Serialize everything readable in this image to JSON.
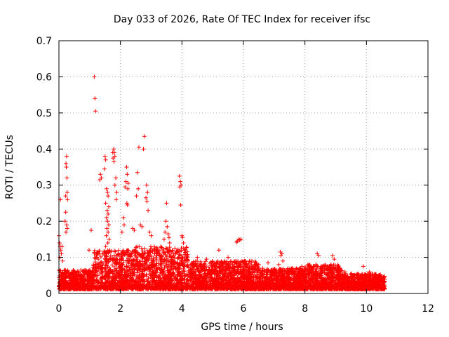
{
  "chart_data": {
    "type": "scatter",
    "title": "Day 033 of 2026, Rate Of TEC Index for receiver ifsc",
    "xlabel": "GPS time / hours",
    "ylabel": "ROTI / TECUs",
    "xlim": [
      0,
      12
    ],
    "ylim": [
      0,
      0.7
    ],
    "xticks": [
      0,
      2,
      4,
      6,
      8,
      10,
      12
    ],
    "yticks": [
      0,
      0.1,
      0.2,
      0.3,
      0.4,
      0.5,
      0.6,
      0.7
    ],
    "xtick_labels": [
      "0",
      "2",
      "4",
      "6",
      "8",
      "10",
      "12"
    ],
    "ytick_labels": [
      "0",
      "0.1",
      "0.2",
      "0.3",
      "0.4",
      "0.5",
      "0.6",
      "0.7"
    ],
    "grid": true,
    "marker": "+",
    "color": "#ff0000",
    "series": [
      {
        "name": "ROTI",
        "points": [
          [
            1.15,
            0.6
          ],
          [
            1.17,
            0.54
          ],
          [
            1.19,
            0.505
          ],
          [
            2.78,
            0.435
          ],
          [
            2.75,
            0.4
          ],
          [
            2.6,
            0.405
          ],
          [
            1.78,
            0.4
          ],
          [
            1.8,
            0.39
          ],
          [
            1.82,
            0.38
          ],
          [
            1.76,
            0.375
          ],
          [
            1.79,
            0.365
          ],
          [
            1.75,
            0.39
          ],
          [
            0.25,
            0.38
          ],
          [
            0.23,
            0.36
          ],
          [
            0.24,
            0.35
          ],
          [
            0.26,
            0.32
          ],
          [
            0.27,
            0.28
          ],
          [
            0.22,
            0.27
          ],
          [
            0.28,
            0.26
          ],
          [
            0.05,
            0.26
          ],
          [
            0.22,
            0.225
          ],
          [
            0.2,
            0.2
          ],
          [
            0.25,
            0.19
          ],
          [
            0.27,
            0.18
          ],
          [
            0.23,
            0.17
          ],
          [
            1.5,
            0.38
          ],
          [
            1.52,
            0.37
          ],
          [
            1.48,
            0.345
          ],
          [
            1.35,
            0.33
          ],
          [
            1.33,
            0.315
          ],
          [
            1.38,
            0.32
          ],
          [
            1.55,
            0.29
          ],
          [
            1.58,
            0.28
          ],
          [
            1.6,
            0.27
          ],
          [
            1.52,
            0.25
          ],
          [
            1.62,
            0.24
          ],
          [
            1.57,
            0.23
          ],
          [
            1.6,
            0.22
          ],
          [
            1.55,
            0.21
          ],
          [
            1.58,
            0.2
          ],
          [
            1.62,
            0.19
          ],
          [
            1.56,
            0.18
          ],
          [
            1.6,
            0.17
          ],
          [
            1.54,
            0.16
          ],
          [
            1.63,
            0.15
          ],
          [
            1.59,
            0.14
          ],
          [
            1.52,
            0.13
          ],
          [
            1.65,
            0.12
          ],
          [
            1.85,
            0.32
          ],
          [
            1.82,
            0.3
          ],
          [
            1.88,
            0.28
          ],
          [
            1.86,
            0.26
          ],
          [
            2.2,
            0.35
          ],
          [
            2.22,
            0.33
          ],
          [
            2.18,
            0.31
          ],
          [
            2.25,
            0.305
          ],
          [
            2.15,
            0.295
          ],
          [
            2.24,
            0.29
          ],
          [
            2.21,
            0.25
          ],
          [
            2.23,
            0.245
          ],
          [
            2.1,
            0.21
          ],
          [
            2.12,
            0.19
          ],
          [
            2.05,
            0.17
          ],
          [
            2.55,
            0.335
          ],
          [
            2.58,
            0.29
          ],
          [
            2.52,
            0.27
          ],
          [
            2.85,
            0.3
          ],
          [
            2.88,
            0.28
          ],
          [
            2.83,
            0.265
          ],
          [
            2.86,
            0.255
          ],
          [
            2.9,
            0.23
          ],
          [
            2.4,
            0.18
          ],
          [
            2.45,
            0.175
          ],
          [
            2.65,
            0.19
          ],
          [
            2.7,
            0.185
          ],
          [
            2.95,
            0.17
          ],
          [
            3.0,
            0.16
          ],
          [
            3.5,
            0.25
          ],
          [
            3.48,
            0.2
          ],
          [
            3.52,
            0.185
          ],
          [
            3.45,
            0.17
          ],
          [
            3.55,
            0.165
          ],
          [
            3.58,
            0.155
          ],
          [
            3.42,
            0.15
          ],
          [
            3.6,
            0.14
          ],
          [
            3.92,
            0.325
          ],
          [
            3.95,
            0.31
          ],
          [
            3.97,
            0.3
          ],
          [
            3.93,
            0.295
          ],
          [
            3.96,
            0.245
          ],
          [
            4.0,
            0.16
          ],
          [
            4.02,
            0.155
          ],
          [
            4.05,
            0.14
          ],
          [
            4.08,
            0.12
          ],
          [
            1.05,
            0.175
          ],
          [
            0.98,
            0.12
          ],
          [
            5.85,
            0.15
          ],
          [
            5.88,
            0.148
          ],
          [
            5.8,
            0.145
          ],
          [
            5.78,
            0.142
          ],
          [
            5.92,
            0.15
          ],
          [
            7.2,
            0.115
          ],
          [
            7.25,
            0.11
          ],
          [
            7.22,
            0.105
          ],
          [
            7.28,
            0.09
          ],
          [
            7.15,
            0.08
          ],
          [
            8.4,
            0.11
          ],
          [
            8.45,
            0.105
          ],
          [
            8.9,
            0.105
          ],
          [
            8.95,
            0.095
          ],
          [
            8.85,
            0.08
          ],
          [
            0.0,
            0.16
          ],
          [
            0.02,
            0.14
          ],
          [
            0.04,
            0.13
          ],
          [
            0.06,
            0.12
          ],
          [
            0.03,
            0.1
          ],
          [
            0.08,
            0.11
          ],
          [
            0.1,
            0.13
          ],
          [
            0.12,
            0.09
          ],
          [
            4.5,
            0.1
          ],
          [
            4.8,
            0.095
          ],
          [
            5.2,
            0.12
          ],
          [
            5.5,
            0.1
          ],
          [
            6.2,
            0.09
          ],
          [
            6.5,
            0.08
          ],
          [
            6.8,
            0.085
          ],
          [
            7.6,
            0.07
          ],
          [
            7.9,
            0.075
          ],
          [
            8.2,
            0.06
          ],
          [
            9.3,
            0.06
          ],
          [
            9.6,
            0.05
          ],
          [
            9.9,
            0.075
          ],
          [
            10.1,
            0.06
          ],
          [
            10.4,
            0.05
          ],
          [
            10.55,
            0.045
          ]
        ]
      }
    ],
    "density_band": [
      {
        "x_range": [
          0,
          1.1
        ],
        "y_max": 0.065
      },
      {
        "x_range": [
          1.1,
          2.5
        ],
        "y_max": 0.12
      },
      {
        "x_range": [
          2.5,
          4.2
        ],
        "y_max": 0.13
      },
      {
        "x_range": [
          4.2,
          6.5
        ],
        "y_max": 0.09
      },
      {
        "x_range": [
          6.5,
          8.0
        ],
        "y_max": 0.07
      },
      {
        "x_range": [
          8.0,
          9.2
        ],
        "y_max": 0.08
      },
      {
        "x_range": [
          9.2,
          10.6
        ],
        "y_max": 0.055
      }
    ]
  }
}
